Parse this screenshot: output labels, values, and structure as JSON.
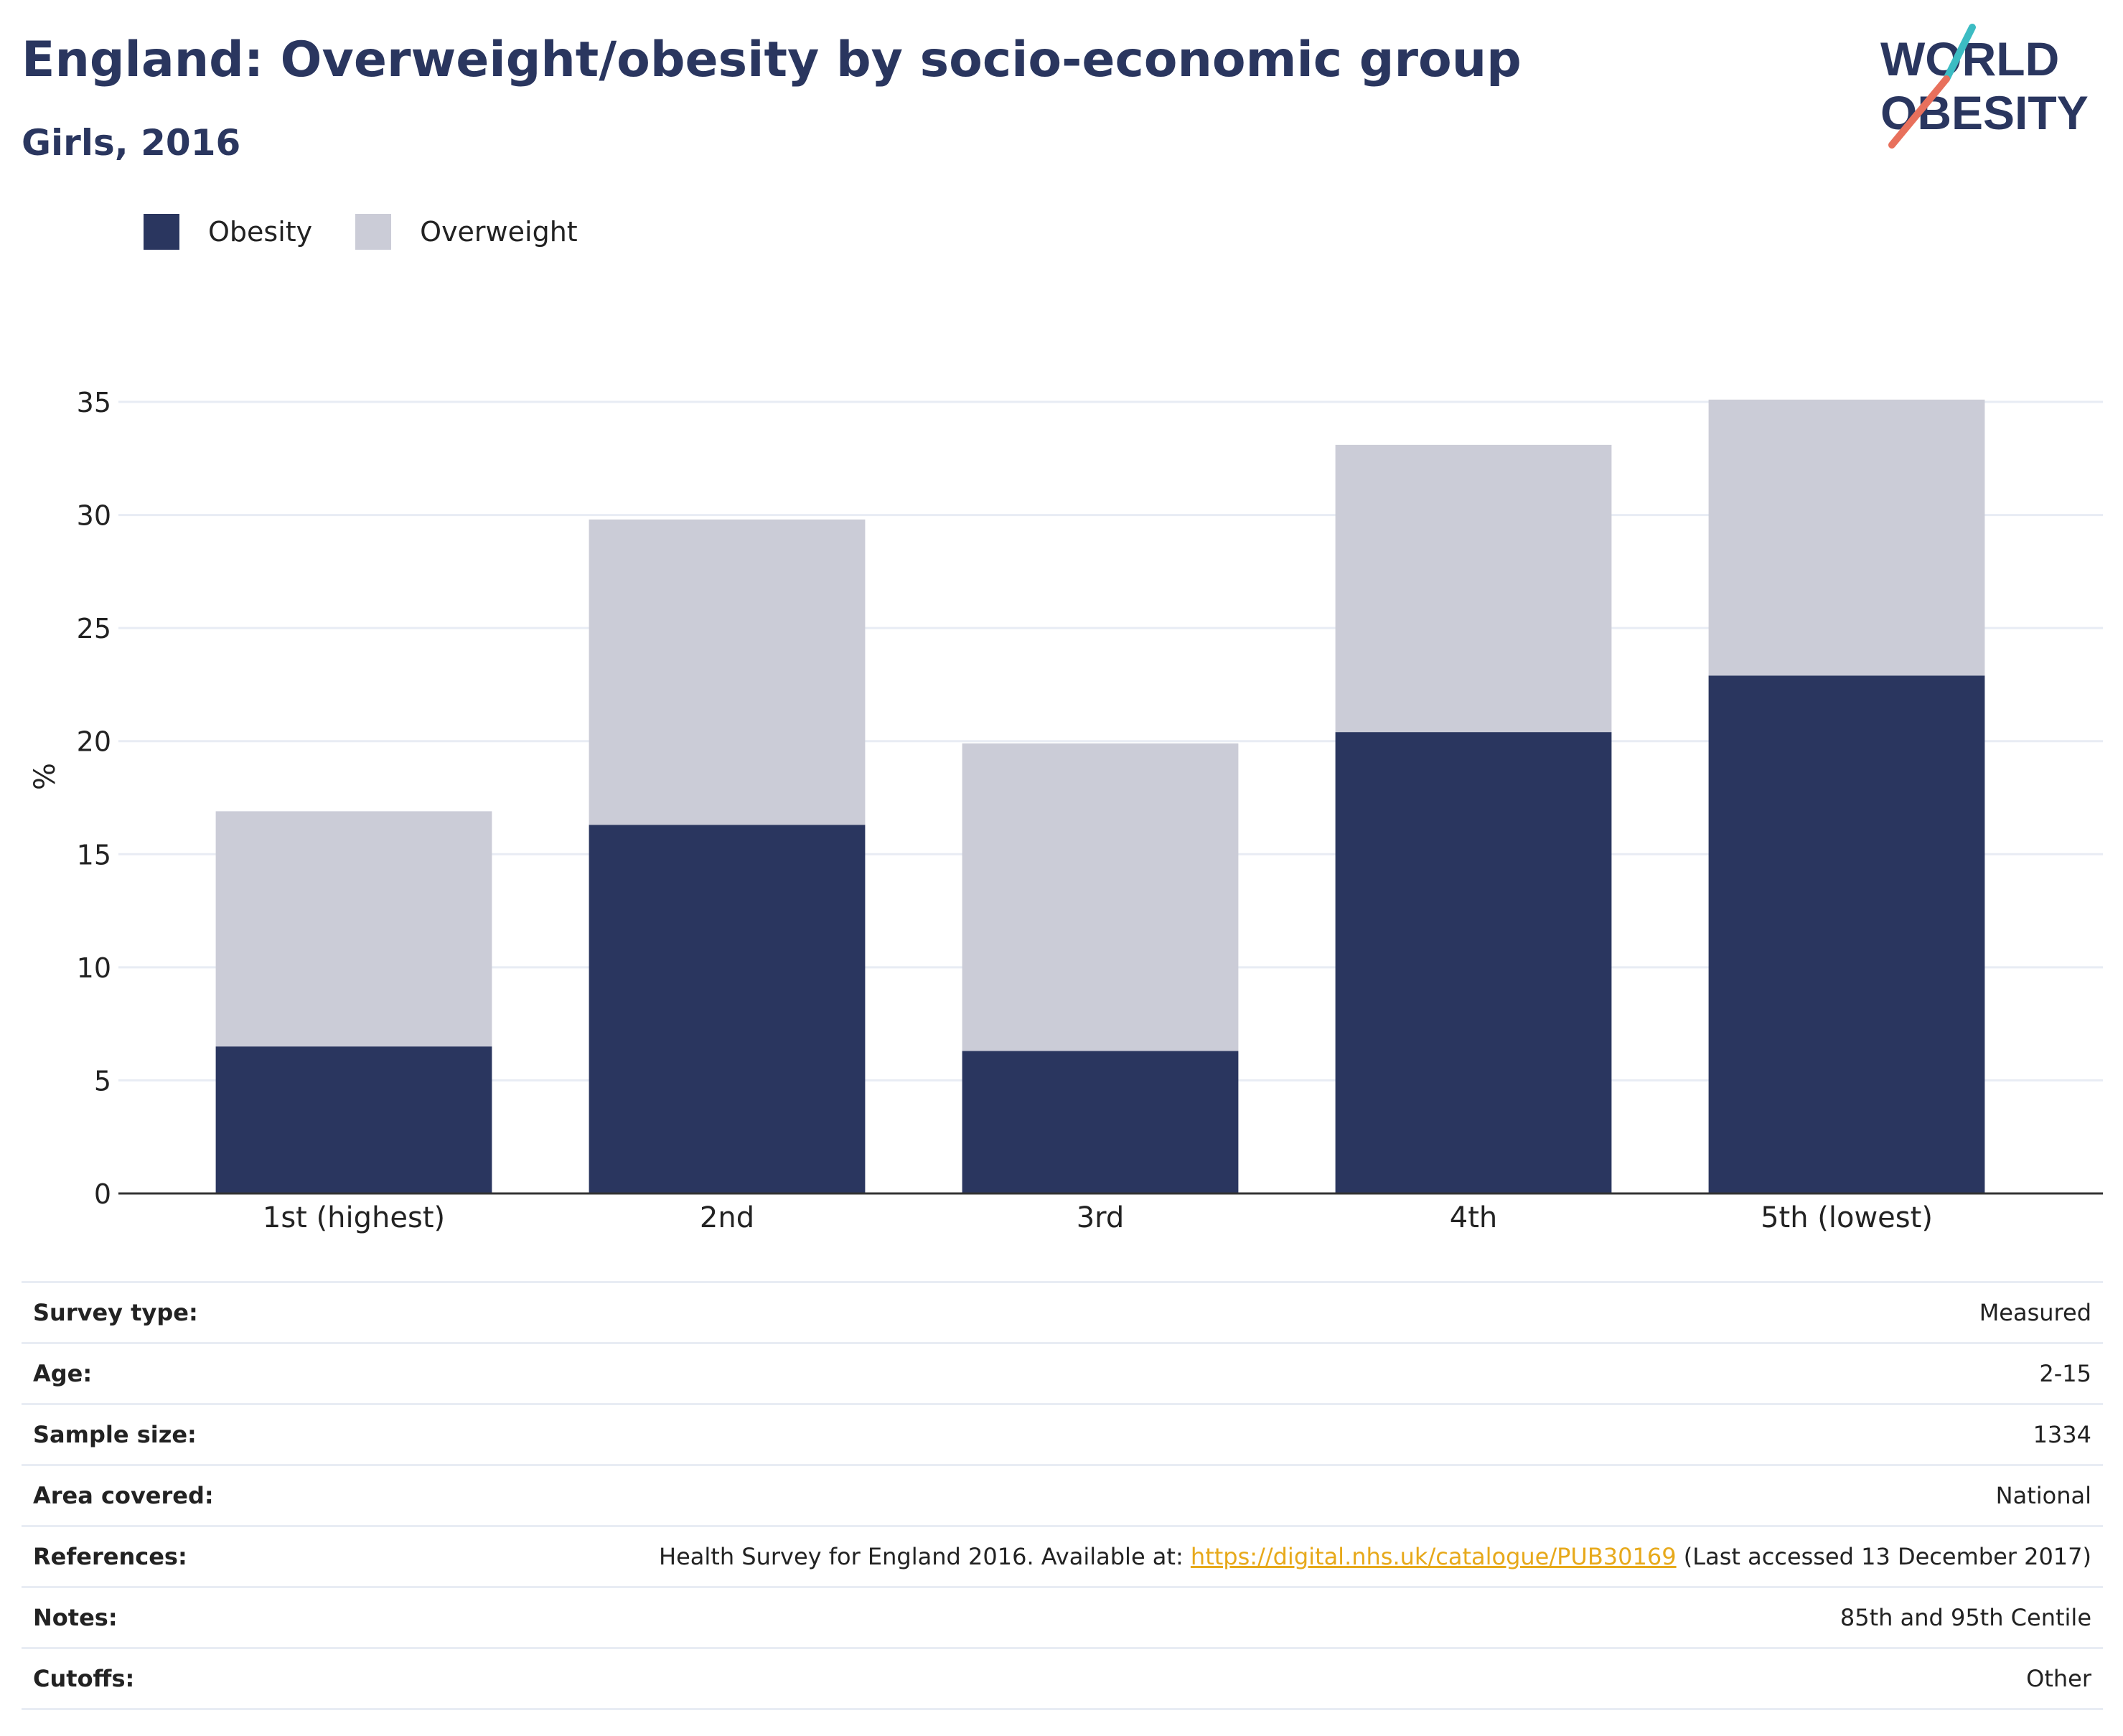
{
  "header": {
    "title": "England: Overweight/obesity by socio-economic group",
    "subtitle": "Girls, 2016"
  },
  "logo": {
    "line1": "WORLD",
    "line2": "OBESITY"
  },
  "colors": {
    "obesity": "#2a365f",
    "overweight": "#cbccd7",
    "link": "#e7a91b"
  },
  "chart_data": {
    "type": "bar",
    "stacked": true,
    "categories": [
      "1st (highest)",
      "2nd",
      "3rd",
      "4th",
      "5th (lowest)"
    ],
    "series": [
      {
        "name": "Obesity",
        "values": [
          6.5,
          16.3,
          6.3,
          20.4,
          22.9
        ]
      },
      {
        "name": "Overweight",
        "values": [
          10.4,
          13.5,
          13.6,
          12.7,
          12.2
        ]
      }
    ],
    "ylabel": "%",
    "ylim": [
      0,
      35
    ],
    "yticks": [
      0,
      5,
      10,
      15,
      20,
      25,
      30,
      35
    ],
    "grid": true,
    "legend": "top-left"
  },
  "meta": [
    {
      "label": "Survey type:",
      "value": "Measured"
    },
    {
      "label": "Age:",
      "value": "2-15"
    },
    {
      "label": "Sample size:",
      "value": "1334"
    },
    {
      "label": "Area covered:",
      "value": "National"
    },
    {
      "label": "References:",
      "value_pre": "Health Survey for England 2016. Available at: ",
      "link": "https://digital.nhs.uk/catalogue/PUB30169",
      "value_post": " (Last accessed 13 December 2017)"
    },
    {
      "label": "Notes:",
      "value": "85th and 95th Centile"
    },
    {
      "label": "Cutoffs:",
      "value": "Other"
    }
  ]
}
